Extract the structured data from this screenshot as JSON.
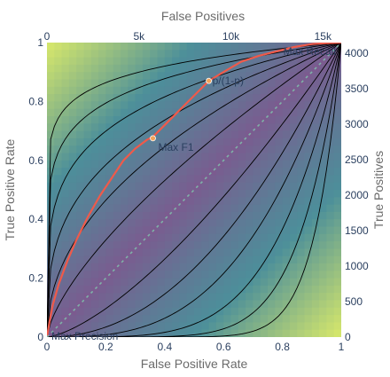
{
  "chart_data": {
    "type": "line",
    "x_axis": {
      "title": "False Positive Rate",
      "range": [
        0,
        1
      ],
      "ticks": [
        "0",
        "0.2",
        "0.4",
        "0.6",
        "0.8",
        "1"
      ]
    },
    "y_axis": {
      "title": "True Positive Rate",
      "range": [
        0,
        1
      ],
      "ticks": [
        "0",
        "0.2",
        "0.4",
        "0.6",
        "0.8",
        "1"
      ]
    },
    "x2_axis": {
      "title": "False Positives",
      "range": [
        0,
        16000
      ],
      "ticks": [
        "0",
        "5k",
        "10k",
        "15k"
      ],
      "tick_values": [
        0,
        5000,
        10000,
        15000
      ]
    },
    "y2_axis": {
      "title": "True Positives",
      "range": [
        0,
        4150
      ],
      "ticks": [
        "0",
        "500",
        "1000",
        "1500",
        "2000",
        "2500",
        "3000",
        "3500",
        "4000"
      ],
      "tick_values": [
        0,
        500,
        1000,
        1500,
        2000,
        2500,
        3000,
        3500,
        4000
      ]
    },
    "series": [
      {
        "kind": "roc",
        "color": "#ef5a4a",
        "x": [
          0,
          0.005,
          0.01,
          0.02,
          0.04,
          0.07,
          0.1,
          0.14,
          0.18,
          0.22,
          0.26,
          0.3,
          0.34,
          0.36,
          0.4,
          0.44,
          0.48,
          0.52,
          0.55,
          0.6,
          0.66,
          0.72,
          0.78,
          0.84,
          0.9,
          0.95,
          1.0
        ],
        "y": [
          0,
          0.03,
          0.06,
          0.11,
          0.18,
          0.26,
          0.33,
          0.41,
          0.48,
          0.54,
          0.6,
          0.64,
          0.67,
          0.68,
          0.72,
          0.76,
          0.8,
          0.84,
          0.87,
          0.9,
          0.935,
          0.955,
          0.97,
          0.985,
          0.995,
          0.998,
          1.0
        ]
      },
      {
        "kind": "chance",
        "color": "#7fb3a8",
        "x": [
          0,
          1
        ],
        "y": [
          0,
          1
        ]
      }
    ],
    "annotations": [
      {
        "label": "Max F1",
        "x": 0.36,
        "y": 0.675
      },
      {
        "label": "p/(1-p)",
        "x": 0.55,
        "y": 0.87
      },
      {
        "label": "Max Recall",
        "x": 1.0,
        "y": 1.0
      },
      {
        "label": "Max Precision",
        "x": 0.0,
        "y": 0.0
      }
    ],
    "background": "filled contour (viridis) with black iso-lines",
    "colors": {
      "contour_low": "#7b5b8f",
      "contour_high": "#d9e96a",
      "line": "#ef5a4a"
    }
  }
}
